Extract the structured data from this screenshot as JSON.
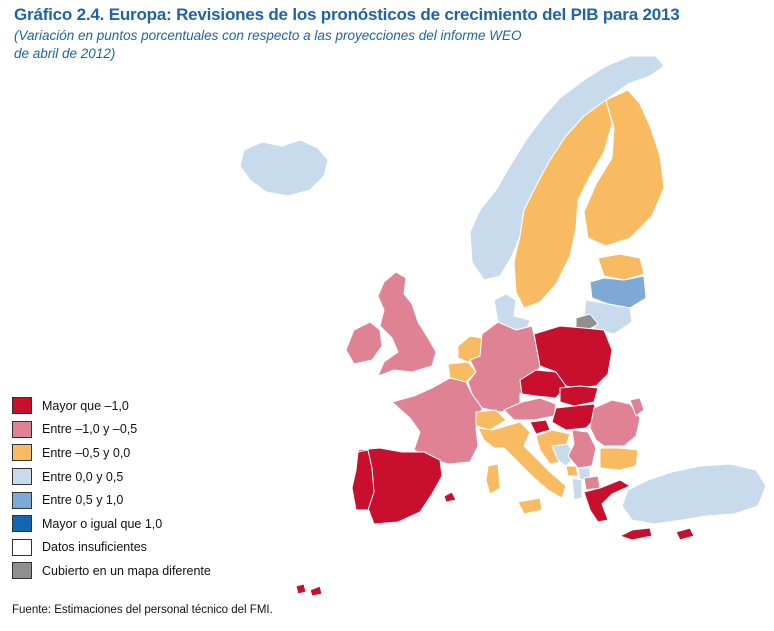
{
  "header": {
    "title": "Gráfico 2.4. Europa: Revisiones de los pronósticos de crecimiento del PIB para 2013",
    "subtitle": "(Variación en puntos porcentuales con respecto a las proyecciones del informe WEO de abril de 2012)"
  },
  "legend": {
    "items": [
      {
        "label": "Mayor que –1,0",
        "color": "#c8102e"
      },
      {
        "label": "Entre –1,0 y –0,5",
        "color": "#df8394"
      },
      {
        "label": "Entre –0,5 y 0,0",
        "color": "#f8bb62"
      },
      {
        "label": "Entre 0,0 y 0,5",
        "color": "#c7dbec"
      },
      {
        "label": "Entre 0,5 y 1,0",
        "color": "#7ea9d6"
      },
      {
        "label": "Mayor o igual que 1,0",
        "color": "#1565b3"
      },
      {
        "label": "Datos insuficientes",
        "color": "#ffffff"
      },
      {
        "label": "Cubierto en un mapa diferente",
        "color": "#8f8f8f"
      }
    ]
  },
  "map_colors": {
    "severe_negative": "#c8102e",
    "negative": "#df8394",
    "slight_negative": "#f8bb62",
    "slight_positive": "#c7dbec",
    "positive": "#7ea9d6",
    "other_map": "#8f8f8f"
  },
  "footer": {
    "source": "Fuente: Estimaciones del personal técnico del FMI."
  }
}
